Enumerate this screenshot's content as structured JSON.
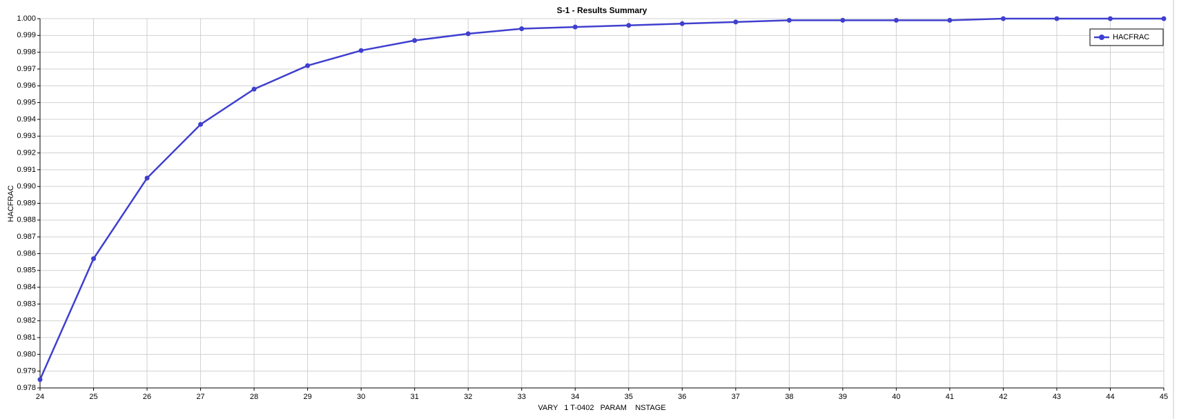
{
  "chart_data": {
    "type": "line",
    "title": "S-1 - Results Summary",
    "x_label": "VARY   1 T-0402   PARAM    NSTAGE",
    "y_label": "HACFRAC",
    "x": [
      24,
      25,
      26,
      27,
      28,
      29,
      30,
      31,
      32,
      33,
      34,
      35,
      36,
      37,
      38,
      39,
      40,
      41,
      42,
      43,
      44,
      45
    ],
    "series": [
      {
        "name": "HACFRAC",
        "color": "#3f3fcf",
        "values": [
          0.9785,
          0.9857,
          0.9905,
          0.9937,
          0.9958,
          0.9972,
          0.9981,
          0.9987,
          0.9991,
          0.9994,
          0.9995,
          0.9996,
          0.9997,
          0.9998,
          0.9999,
          0.9999,
          0.9999,
          0.9999,
          1.0,
          1.0,
          1.0,
          1.0
        ]
      }
    ],
    "xlim": [
      24,
      45
    ],
    "xticks": [
      24,
      25,
      26,
      27,
      28,
      29,
      30,
      31,
      32,
      33,
      34,
      35,
      36,
      37,
      38,
      39,
      40,
      41,
      42,
      43,
      44,
      45
    ],
    "ylim": [
      0.978,
      1.0
    ],
    "yticks": [
      0.978,
      0.979,
      {
        "value": 0.98,
        "label": "0.980"
      },
      0.981,
      0.982,
      0.983,
      0.984,
      0.985,
      0.986,
      0.987,
      0.988,
      0.989,
      {
        "value": 0.99,
        "label": "0.990"
      },
      0.991,
      0.992,
      0.993,
      0.994,
      0.995,
      0.996,
      0.997,
      0.998,
      0.999,
      {
        "value": 1.0,
        "label": "1.000"
      }
    ],
    "grid": true,
    "legend": "top-right"
  }
}
